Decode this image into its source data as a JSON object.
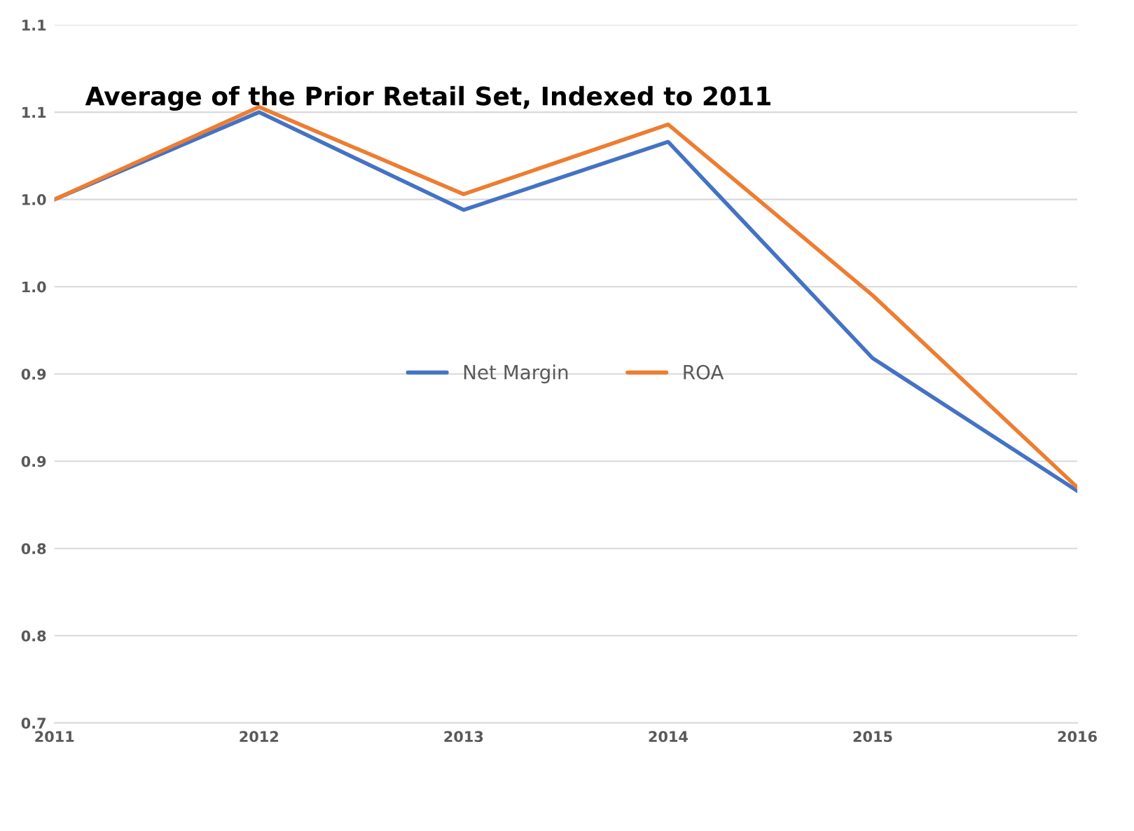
{
  "chart_data": {
    "type": "line",
    "title": "Average of the Prior Retail Set, Indexed to 2011",
    "categories": [
      "2011",
      "2012",
      "2013",
      "2014",
      "2015",
      "2016"
    ],
    "series": [
      {
        "name": "Net Margin",
        "color": "#4472c4",
        "values": [
          1.0,
          1.05,
          0.994,
          1.033,
          0.909,
          0.833
        ]
      },
      {
        "name": "ROA",
        "color": "#ed7d31",
        "values": [
          1.0,
          1.053,
          1.003,
          1.043,
          0.945,
          0.835
        ]
      }
    ],
    "ylim": [
      0.7,
      1.1
    ],
    "yticks": [
      {
        "value": 0.7,
        "label": "0.7"
      },
      {
        "value": 0.75,
        "label": "0.8"
      },
      {
        "value": 0.8,
        "label": "0.8"
      },
      {
        "value": 0.85,
        "label": "0.9"
      },
      {
        "value": 0.9,
        "label": "0.9"
      },
      {
        "value": 0.95,
        "label": "1.0"
      },
      {
        "value": 1.0,
        "label": "1.0"
      },
      {
        "value": 1.05,
        "label": "1.1"
      },
      {
        "value": 1.1,
        "label": "1.1"
      }
    ],
    "grid": "y",
    "legend": "center",
    "marker": "none",
    "line_style": "solid"
  }
}
